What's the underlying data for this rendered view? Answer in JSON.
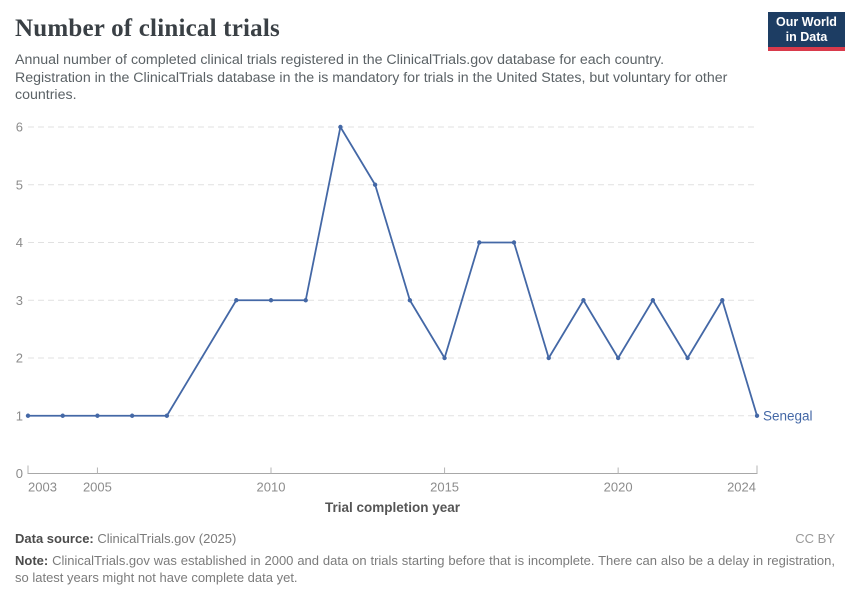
{
  "header": {
    "title": "Number of clinical trials",
    "subtitle": "Annual number of completed clinical trials registered in the ClinicalTrials.gov database for each country. Registration in the ClinicalTrials database in the is mandatory for trials in the United States, but voluntary for other countries.",
    "logo": {
      "line1": "Our World",
      "line2": "in Data",
      "bg_color": "#1d3d63",
      "accent_color": "#d93a4b"
    }
  },
  "chart_data": {
    "type": "line",
    "title": "Number of clinical trials",
    "xlabel": "Trial completion year",
    "ylabel": "",
    "x": [
      2003,
      2004,
      2005,
      2006,
      2007,
      2008,
      2009,
      2010,
      2011,
      2012,
      2013,
      2014,
      2015,
      2016,
      2017,
      2018,
      2019,
      2020,
      2021,
      2022,
      2023,
      2024
    ],
    "series": [
      {
        "name": "Senegal",
        "color": "#4468a6",
        "values": [
          1,
          1,
          1,
          1,
          1,
          null,
          3,
          3,
          3,
          6,
          5,
          3,
          2,
          4,
          4,
          2,
          3,
          2,
          3,
          2,
          3,
          1
        ]
      }
    ],
    "ylim": [
      0,
      6
    ],
    "yticks": [
      0,
      1,
      2,
      3,
      4,
      5,
      6
    ],
    "xticks": [
      2003,
      2005,
      2010,
      2015,
      2020,
      2024
    ],
    "grid": "horizontal-dashed",
    "legend_position": "end-of-line-label",
    "end_label": "Senegal",
    "colors": {
      "gridline": "#e1e1e1",
      "axis_line": "#a8a8a8",
      "tick_mark": "#b4b4b4",
      "tick_label": "#8c8c8c",
      "axis_title": "#555555"
    }
  },
  "footer": {
    "source_label": "Data source:",
    "source_value": "ClinicalTrials.gov (2025)",
    "license": "CC BY",
    "note_label": "Note:",
    "note_text": "ClinicalTrials.gov was established in 2000 and data on trials starting before that is incomplete. There can also be a delay in registration, so latest years might not have complete data yet."
  }
}
